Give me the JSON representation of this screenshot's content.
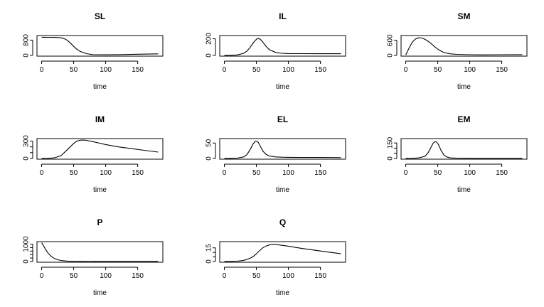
{
  "chart_data": [
    {
      "type": "line",
      "title": "SL",
      "xlabel": "time",
      "xticks": [
        0,
        50,
        100,
        150
      ],
      "yticks": [
        0,
        800
      ],
      "xlim": [
        0,
        182
      ],
      "ylim": [
        0,
        1000
      ],
      "x": [
        0,
        10,
        20,
        30,
        35,
        40,
        45,
        50,
        55,
        60,
        70,
        80,
        100,
        120,
        150,
        182
      ],
      "y": [
        950,
        948,
        945,
        920,
        880,
        790,
        640,
        470,
        320,
        210,
        90,
        40,
        30,
        40,
        60,
        80
      ]
    },
    {
      "type": "line",
      "title": "IL",
      "xlabel": "time",
      "xticks": [
        0,
        50,
        100,
        150
      ],
      "yticks": [
        0,
        200
      ],
      "xlim": [
        0,
        182
      ],
      "ylim": [
        0,
        230
      ],
      "x": [
        0,
        10,
        20,
        30,
        35,
        40,
        45,
        50,
        53,
        56,
        60,
        65,
        70,
        80,
        90,
        100,
        120,
        150,
        182
      ],
      "y": [
        0,
        1,
        5,
        25,
        50,
        95,
        150,
        195,
        205,
        195,
        160,
        110,
        70,
        35,
        25,
        22,
        21,
        20,
        20
      ]
    },
    {
      "type": "line",
      "title": "SM",
      "xlabel": "time",
      "xticks": [
        0,
        50,
        100,
        150
      ],
      "yticks": [
        0,
        600
      ],
      "xlim": [
        0,
        182
      ],
      "ylim": [
        0,
        760
      ],
      "x": [
        0,
        5,
        10,
        15,
        20,
        25,
        30,
        35,
        40,
        45,
        50,
        55,
        60,
        70,
        80,
        100,
        120,
        150,
        182
      ],
      "y": [
        20,
        280,
        520,
        650,
        700,
        690,
        640,
        560,
        460,
        350,
        250,
        170,
        110,
        60,
        40,
        25,
        20,
        25,
        30
      ]
    },
    {
      "type": "line",
      "title": "IM",
      "xlabel": "time",
      "xticks": [
        0,
        50,
        100,
        150
      ],
      "yticks": [
        0,
        100,
        200,
        300
      ],
      "xlim": [
        0,
        182
      ],
      "ylim": [
        0,
        330
      ],
      "x": [
        0,
        10,
        20,
        30,
        40,
        50,
        55,
        60,
        65,
        70,
        80,
        90,
        100,
        120,
        140,
        160,
        182
      ],
      "y": [
        0,
        2,
        10,
        45,
        150,
        260,
        300,
        315,
        318,
        312,
        290,
        265,
        240,
        200,
        170,
        140,
        110
      ]
    },
    {
      "type": "line",
      "title": "EL",
      "xlabel": "time",
      "xticks": [
        0,
        50,
        100,
        150
      ],
      "yticks": [
        0,
        50
      ],
      "xlim": [
        0,
        182
      ],
      "ylim": [
        0,
        62
      ],
      "x": [
        0,
        10,
        20,
        30,
        35,
        40,
        45,
        48,
        50,
        53,
        56,
        60,
        65,
        70,
        80,
        90,
        100,
        120,
        150,
        182
      ],
      "y": [
        0,
        0,
        1,
        5,
        12,
        28,
        48,
        55,
        56,
        52,
        40,
        24,
        13,
        8,
        5,
        4,
        3.5,
        3,
        3,
        2.5
      ]
    },
    {
      "type": "line",
      "title": "EM",
      "xlabel": "time",
      "xticks": [
        0,
        50,
        100,
        150
      ],
      "yticks": [
        0,
        50,
        100,
        150
      ],
      "xlim": [
        0,
        182
      ],
      "ylim": [
        0,
        185
      ],
      "x": [
        0,
        10,
        20,
        30,
        35,
        40,
        43,
        46,
        48,
        51,
        55,
        60,
        65,
        70,
        80,
        100,
        120,
        150,
        182
      ],
      "y": [
        0,
        1,
        5,
        20,
        55,
        115,
        150,
        163,
        160,
        135,
        80,
        30,
        12,
        5,
        2,
        1,
        0,
        0,
        0
      ]
    },
    {
      "type": "line",
      "title": "P",
      "xlabel": "time",
      "xticks": [
        0,
        50,
        100,
        150
      ],
      "yticks": [
        0,
        200,
        400,
        600,
        800,
        1000
      ],
      "xlim": [
        0,
        182
      ],
      "ylim": [
        0,
        1100
      ],
      "x": [
        0,
        3,
        6,
        10,
        15,
        20,
        25,
        30,
        40,
        50,
        60,
        80,
        100,
        120,
        150,
        182
      ],
      "y": [
        1080,
        900,
        700,
        480,
        290,
        170,
        100,
        60,
        20,
        8,
        4,
        2,
        1,
        1,
        1,
        1
      ]
    },
    {
      "type": "line",
      "title": "Q",
      "xlabel": "time",
      "xticks": [
        0,
        50,
        100,
        150
      ],
      "yticks": [
        0,
        5,
        10,
        15
      ],
      "xlim": [
        0,
        182
      ],
      "ylim": [
        0,
        21
      ],
      "x": [
        0,
        10,
        20,
        30,
        40,
        45,
        50,
        55,
        60,
        65,
        70,
        75,
        80,
        90,
        100,
        120,
        150,
        182
      ],
      "y": [
        0,
        0.1,
        0.3,
        1.2,
        3.5,
        5.5,
        8.5,
        12,
        15,
        17,
        18.2,
        18.6,
        18.6,
        17.8,
        16.8,
        14.5,
        11.5,
        8.5
      ]
    }
  ]
}
